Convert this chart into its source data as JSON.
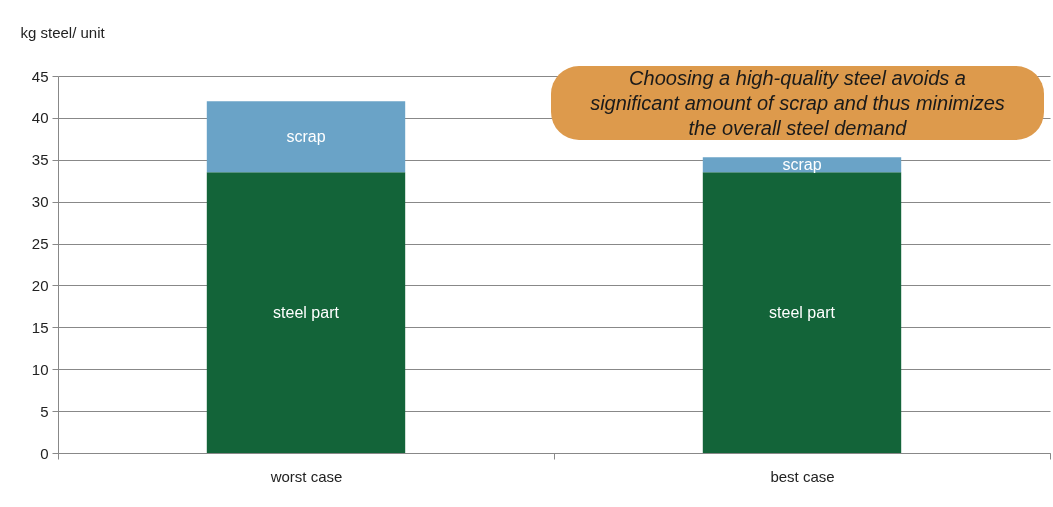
{
  "chart_data": {
    "type": "bar",
    "stacked": true,
    "ylabel": "kg steel/ unit",
    "categories": [
      "worst case",
      "best case"
    ],
    "series": [
      {
        "name": "steel part",
        "color": "#136439",
        "values": [
          33.5,
          33.5
        ]
      },
      {
        "name": "scrap",
        "color": "#6aa3c7",
        "values": [
          8.5,
          1.8
        ]
      }
    ],
    "ylim": [
      0,
      45
    ],
    "yticks": [
      0,
      5,
      10,
      15,
      20,
      25,
      30,
      35,
      40,
      45
    ],
    "grid": "y",
    "legend": false,
    "annotations": [
      "Choosing a high-quality steel avoids a significant amount of scrap and thus minimizes the overall steel demand"
    ]
  }
}
